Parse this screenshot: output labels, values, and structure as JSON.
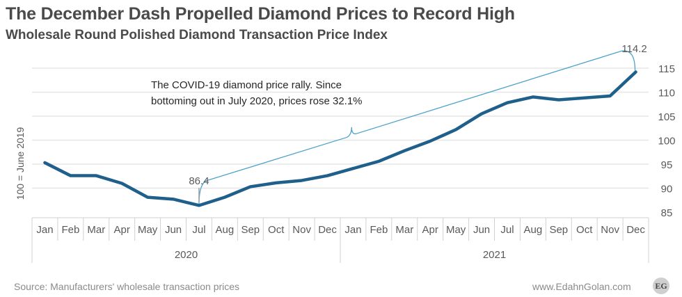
{
  "header": {
    "title": "The December Dash Propelled Diamond Prices to Record High",
    "subtitle": "Wholesale Round Polished Diamond Transaction Price Index"
  },
  "footer": {
    "source": "Source: Manufacturers' wholesale transaction prices",
    "website": "www.EdahnGolan.com",
    "logo_text": "EG"
  },
  "colors": {
    "line": "#1f5f8b",
    "bracket": "#4aa3c8",
    "grid": "#e6e6e6",
    "axis_divider": "#d0d0d0"
  },
  "chart_data": {
    "type": "line",
    "title": "The December Dash Propelled Diamond Prices to Record High",
    "subtitle": "Wholesale Round Polished Diamond Transaction Price Index",
    "xlabel": "",
    "ylabel": "100 = June 2019",
    "y_axis_side": "right",
    "ylim": [
      85,
      115
    ],
    "yticks": [
      85,
      90,
      95,
      100,
      105,
      110,
      115
    ],
    "grid": true,
    "x_groups": [
      {
        "label": "2020",
        "months": [
          "Jan",
          "Feb",
          "Mar",
          "Apr",
          "May",
          "Jun",
          "Jul",
          "Aug",
          "Sep",
          "Oct",
          "Nov",
          "Dec"
        ]
      },
      {
        "label": "2021",
        "months": [
          "Jan",
          "Feb",
          "Mar",
          "Apr",
          "May",
          "Jun",
          "Jul",
          "Aug",
          "Sep",
          "Oct",
          "Nov",
          "Dec"
        ]
      }
    ],
    "series": [
      {
        "name": "Price Index",
        "values": [
          95.3,
          92.6,
          92.6,
          91.0,
          88.1,
          87.7,
          86.4,
          88.1,
          90.3,
          91.1,
          91.6,
          92.6,
          94.1,
          95.6,
          97.8,
          99.8,
          102.2,
          105.5,
          107.8,
          109.0,
          108.4,
          108.8,
          109.2,
          114.2
        ]
      }
    ],
    "data_labels": [
      {
        "index": 6,
        "text": "86.4"
      },
      {
        "index": 23,
        "text": "114.2"
      }
    ],
    "annotation": {
      "lines": [
        "The COVID-19 diamond price rally. Since",
        "bottoming out in July 2020, prices rose 32.1%"
      ],
      "bracket_from_index": 6,
      "bracket_to_index": 23
    }
  }
}
